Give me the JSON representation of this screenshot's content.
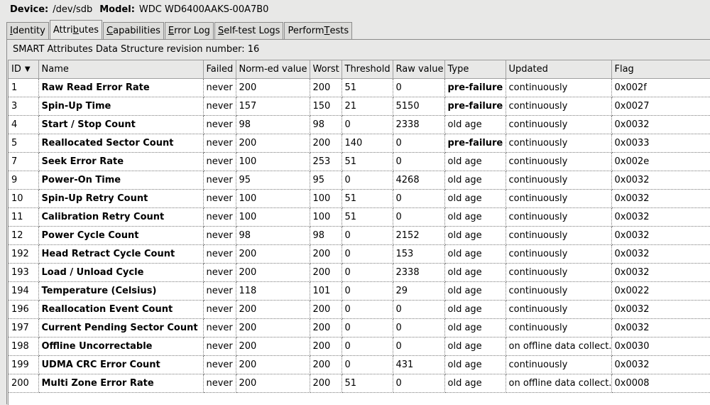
{
  "device": {
    "device_label": "Device:",
    "device_value": "/dev/sdb",
    "model_label": "Model:",
    "model_value": "WDC WD6400AAKS-00A7B0"
  },
  "tabs": [
    {
      "pre": "",
      "u": "I",
      "post": "dentity"
    },
    {
      "pre": "Attri",
      "u": "b",
      "post": "utes"
    },
    {
      "pre": "",
      "u": "C",
      "post": "apabilities"
    },
    {
      "pre": "",
      "u": "E",
      "post": "rror Log"
    },
    {
      "pre": "",
      "u": "S",
      "post": "elf-test Logs"
    },
    {
      "pre": "Perform ",
      "u": "T",
      "post": "ests"
    }
  ],
  "revision_text": "SMART Attributes Data Structure revision number: 16",
  "columns": [
    "ID",
    "Name",
    "Failed",
    "Norm-ed value",
    "Worst",
    "Threshold",
    "Raw value",
    "Type",
    "Updated",
    "Flag"
  ],
  "sort_indicator": "▼",
  "rows": [
    {
      "id": "1",
      "name": "Raw Read Error Rate",
      "failed": "never",
      "norm": "200",
      "worst": "200",
      "threshold": "51",
      "raw": "0",
      "type": "pre-failure",
      "updated": "continuously",
      "flag": "0x002f"
    },
    {
      "id": "3",
      "name": "Spin-Up Time",
      "failed": "never",
      "norm": "157",
      "worst": "150",
      "threshold": "21",
      "raw": "5150",
      "type": "pre-failure",
      "updated": "continuously",
      "flag": "0x0027"
    },
    {
      "id": "4",
      "name": "Start / Stop Count",
      "failed": "never",
      "norm": "98",
      "worst": "98",
      "threshold": "0",
      "raw": "2338",
      "type": "old age",
      "updated": "continuously",
      "flag": "0x0032"
    },
    {
      "id": "5",
      "name": "Reallocated Sector Count",
      "failed": "never",
      "norm": "200",
      "worst": "200",
      "threshold": "140",
      "raw": "0",
      "type": "pre-failure",
      "updated": "continuously",
      "flag": "0x0033"
    },
    {
      "id": "7",
      "name": "Seek Error Rate",
      "failed": "never",
      "norm": "100",
      "worst": "253",
      "threshold": "51",
      "raw": "0",
      "type": "old age",
      "updated": "continuously",
      "flag": "0x002e"
    },
    {
      "id": "9",
      "name": "Power-On Time",
      "failed": "never",
      "norm": "95",
      "worst": "95",
      "threshold": "0",
      "raw": "4268",
      "type": "old age",
      "updated": "continuously",
      "flag": "0x0032"
    },
    {
      "id": "10",
      "name": "Spin-Up Retry Count",
      "failed": "never",
      "norm": "100",
      "worst": "100",
      "threshold": "51",
      "raw": "0",
      "type": "old age",
      "updated": "continuously",
      "flag": "0x0032"
    },
    {
      "id": "11",
      "name": "Calibration Retry Count",
      "failed": "never",
      "norm": "100",
      "worst": "100",
      "threshold": "51",
      "raw": "0",
      "type": "old age",
      "updated": "continuously",
      "flag": "0x0032"
    },
    {
      "id": "12",
      "name": "Power Cycle Count",
      "failed": "never",
      "norm": "98",
      "worst": "98",
      "threshold": "0",
      "raw": "2152",
      "type": "old age",
      "updated": "continuously",
      "flag": "0x0032"
    },
    {
      "id": "192",
      "name": "Head Retract Cycle Count",
      "failed": "never",
      "norm": "200",
      "worst": "200",
      "threshold": "0",
      "raw": "153",
      "type": "old age",
      "updated": "continuously",
      "flag": "0x0032"
    },
    {
      "id": "193",
      "name": "Load / Unload Cycle",
      "failed": "never",
      "norm": "200",
      "worst": "200",
      "threshold": "0",
      "raw": "2338",
      "type": "old age",
      "updated": "continuously",
      "flag": "0x0032"
    },
    {
      "id": "194",
      "name": "Temperature (Celsius)",
      "failed": "never",
      "norm": "118",
      "worst": "101",
      "threshold": "0",
      "raw": "29",
      "type": "old age",
      "updated": "continuously",
      "flag": "0x0022"
    },
    {
      "id": "196",
      "name": "Reallocation Event Count",
      "failed": "never",
      "norm": "200",
      "worst": "200",
      "threshold": "0",
      "raw": "0",
      "type": "old age",
      "updated": "continuously",
      "flag": "0x0032"
    },
    {
      "id": "197",
      "name": "Current Pending Sector Count",
      "failed": "never",
      "norm": "200",
      "worst": "200",
      "threshold": "0",
      "raw": "0",
      "type": "old age",
      "updated": "continuously",
      "flag": "0x0032"
    },
    {
      "id": "198",
      "name": "Offline Uncorrectable",
      "failed": "never",
      "norm": "200",
      "worst": "200",
      "threshold": "0",
      "raw": "0",
      "type": "old age",
      "updated": "on offline data collect.",
      "flag": "0x0030"
    },
    {
      "id": "199",
      "name": "UDMA CRC Error Count",
      "failed": "never",
      "norm": "200",
      "worst": "200",
      "threshold": "0",
      "raw": "431",
      "type": "old age",
      "updated": "continuously",
      "flag": "0x0032"
    },
    {
      "id": "200",
      "name": "Multi Zone Error Rate",
      "failed": "never",
      "norm": "200",
      "worst": "200",
      "threshold": "51",
      "raw": "0",
      "type": "old age",
      "updated": "on offline data collect.",
      "flag": "0x0008"
    }
  ]
}
